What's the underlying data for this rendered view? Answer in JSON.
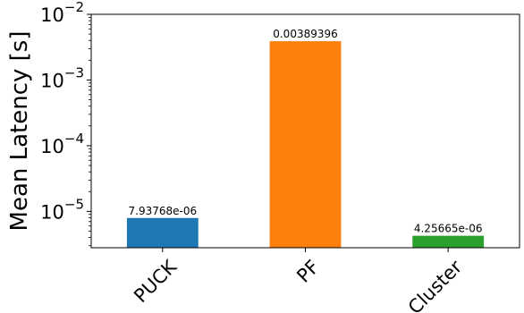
{
  "chart_data": {
    "type": "bar",
    "title": "",
    "xlabel": "",
    "ylabel": "Mean Latency [s]",
    "yscale": "log",
    "ylim": [
      2.8e-06,
      0.01
    ],
    "grid": false,
    "legend": "none",
    "categories": [
      "PUCK",
      "PF",
      "Cluster"
    ],
    "values": [
      7.93768e-06,
      0.00389396,
      4.25665e-06
    ],
    "value_labels": [
      "7.93768e-06",
      "0.00389396",
      "4.25665e-06"
    ],
    "colors": [
      "#1f77b4",
      "#ff7f0e",
      "#2ca02c"
    ],
    "y_ticks": [
      {
        "value": 1e-05,
        "base": "10",
        "exponent": "−5"
      },
      {
        "value": 0.0001,
        "base": "10",
        "exponent": "−4"
      },
      {
        "value": 0.001,
        "base": "10",
        "exponent": "−3"
      },
      {
        "value": 0.01,
        "base": "10",
        "exponent": "−2"
      }
    ]
  }
}
